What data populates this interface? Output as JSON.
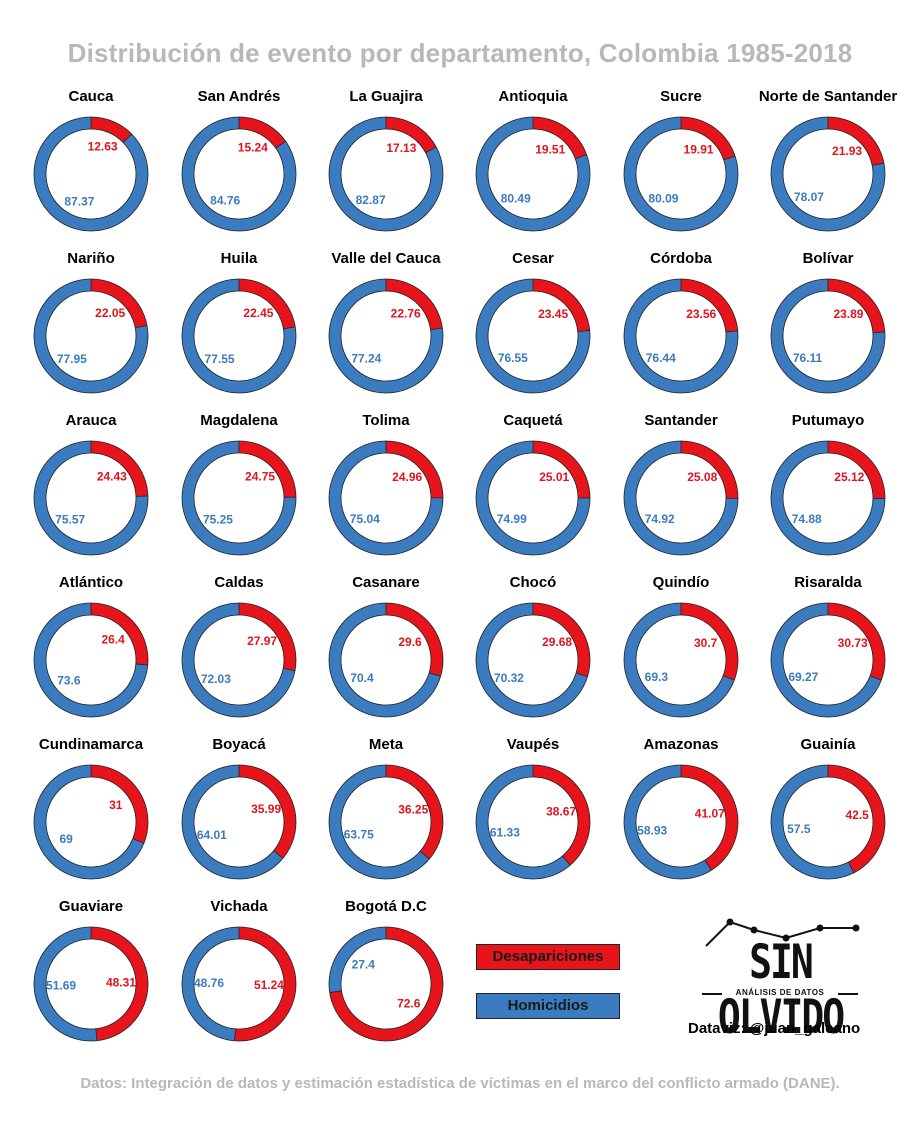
{
  "title": "Distribución de evento por departamento, Colombia 1985-2018",
  "legend": {
    "red_label": "Desapariciones",
    "blue_label": "Homicidios"
  },
  "colors": {
    "desapariciones": "#e8141c",
    "homicidios": "#3b7bbf",
    "text_red": "#e0141e",
    "text_blue": "#3b7bbf"
  },
  "logo": {
    "main": "SIN OLVIDO",
    "sub": "ANÁLISIS DE DATOS"
  },
  "credit": "Dataviz: @juan_galeano",
  "source": "Datos: Integración de datos y estimación estadística de víctimas en el marco del conflicto armado (DANE).",
  "chart_data": {
    "type": "pie",
    "title": "Distribución de evento por departamento, Colombia 1985-2018",
    "series_names": [
      "Desapariciones",
      "Homicidios"
    ],
    "legend_position": "bottom-center",
    "departments": [
      {
        "name": "Cauca",
        "desapariciones": "12.63",
        "homicidios": "87.37"
      },
      {
        "name": "San Andrés",
        "desapariciones": "15.24",
        "homicidios": "84.76"
      },
      {
        "name": "La Guajira",
        "desapariciones": "17.13",
        "homicidios": "82.87"
      },
      {
        "name": "Antioquia",
        "desapariciones": "19.51",
        "homicidios": "80.49"
      },
      {
        "name": "Sucre",
        "desapariciones": "19.91",
        "homicidios": "80.09"
      },
      {
        "name": "Norte de Santander",
        "desapariciones": "21.93",
        "homicidios": "78.07"
      },
      {
        "name": "Nariño",
        "desapariciones": "22.05",
        "homicidios": "77.95"
      },
      {
        "name": "Huila",
        "desapariciones": "22.45",
        "homicidios": "77.55"
      },
      {
        "name": "Valle del Cauca",
        "desapariciones": "22.76",
        "homicidios": "77.24"
      },
      {
        "name": "Cesar",
        "desapariciones": "23.45",
        "homicidios": "76.55"
      },
      {
        "name": "Córdoba",
        "desapariciones": "23.56",
        "homicidios": "76.44"
      },
      {
        "name": "Bolívar",
        "desapariciones": "23.89",
        "homicidios": "76.11"
      },
      {
        "name": "Arauca",
        "desapariciones": "24.43",
        "homicidios": "75.57"
      },
      {
        "name": "Magdalena",
        "desapariciones": "24.75",
        "homicidios": "75.25"
      },
      {
        "name": "Tolima",
        "desapariciones": "24.96",
        "homicidios": "75.04"
      },
      {
        "name": "Caquetá",
        "desapariciones": "25.01",
        "homicidios": "74.99"
      },
      {
        "name": "Santander",
        "desapariciones": "25.08",
        "homicidios": "74.92"
      },
      {
        "name": "Putumayo",
        "desapariciones": "25.12",
        "homicidios": "74.88"
      },
      {
        "name": "Atlántico",
        "desapariciones": "26.4",
        "homicidios": "73.6"
      },
      {
        "name": "Caldas",
        "desapariciones": "27.97",
        "homicidios": "72.03"
      },
      {
        "name": "Casanare",
        "desapariciones": "29.6",
        "homicidios": "70.4"
      },
      {
        "name": "Chocó",
        "desapariciones": "29.68",
        "homicidios": "70.32"
      },
      {
        "name": "Quindío",
        "desapariciones": "30.7",
        "homicidios": "69.3"
      },
      {
        "name": "Risaralda",
        "desapariciones": "30.73",
        "homicidios": "69.27"
      },
      {
        "name": "Cundinamarca",
        "desapariciones": "31",
        "homicidios": "69"
      },
      {
        "name": "Boyacá",
        "desapariciones": "35.99",
        "homicidios": "64.01"
      },
      {
        "name": "Meta",
        "desapariciones": "36.25",
        "homicidios": "63.75"
      },
      {
        "name": "Vaupés",
        "desapariciones": "38.67",
        "homicidios": "61.33"
      },
      {
        "name": "Amazonas",
        "desapariciones": "41.07",
        "homicidios": "58.93"
      },
      {
        "name": "Guainía",
        "desapariciones": "42.5",
        "homicidios": "57.5"
      },
      {
        "name": "Guaviare",
        "desapariciones": "48.31",
        "homicidios": "51.69"
      },
      {
        "name": "Vichada",
        "desapariciones": "51.24",
        "homicidios": "48.76"
      },
      {
        "name": "Bogotá D.C",
        "desapariciones": "72.6",
        "homicidios": "27.4"
      }
    ]
  }
}
